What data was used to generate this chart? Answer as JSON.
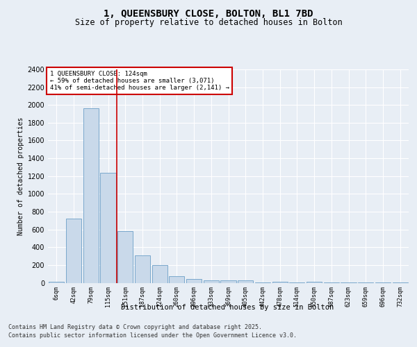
{
  "title1": "1, QUEENSBURY CLOSE, BOLTON, BL1 7BD",
  "title2": "Size of property relative to detached houses in Bolton",
  "xlabel": "Distribution of detached houses by size in Bolton",
  "ylabel": "Number of detached properties",
  "bar_color": "#c9d9ea",
  "bar_edge_color": "#7aa8cc",
  "categories": [
    "6sqm",
    "42sqm",
    "79sqm",
    "115sqm",
    "151sqm",
    "187sqm",
    "224sqm",
    "260sqm",
    "296sqm",
    "333sqm",
    "369sqm",
    "405sqm",
    "442sqm",
    "478sqm",
    "514sqm",
    "550sqm",
    "587sqm",
    "623sqm",
    "659sqm",
    "696sqm",
    "732sqm"
  ],
  "values": [
    12,
    720,
    1960,
    1235,
    578,
    305,
    200,
    75,
    40,
    30,
    30,
    25,
    5,
    15,
    5,
    10,
    2,
    2,
    2,
    2,
    2
  ],
  "vline_x": 3.5,
  "vline_color": "#cc0000",
  "ylim": [
    0,
    2400
  ],
  "yticks": [
    0,
    200,
    400,
    600,
    800,
    1000,
    1200,
    1400,
    1600,
    1800,
    2000,
    2200,
    2400
  ],
  "annotation_title": "1 QUEENSBURY CLOSE: 124sqm",
  "annotation_line1": "← 59% of detached houses are smaller (3,071)",
  "annotation_line2": "41% of semi-detached houses are larger (2,141) →",
  "annotation_box_color": "#cc0000",
  "footer_line1": "Contains HM Land Registry data © Crown copyright and database right 2025.",
  "footer_line2": "Contains public sector information licensed under the Open Government Licence v3.0.",
  "bg_color": "#e8eef5",
  "plot_bg_color": "#e8eef5"
}
